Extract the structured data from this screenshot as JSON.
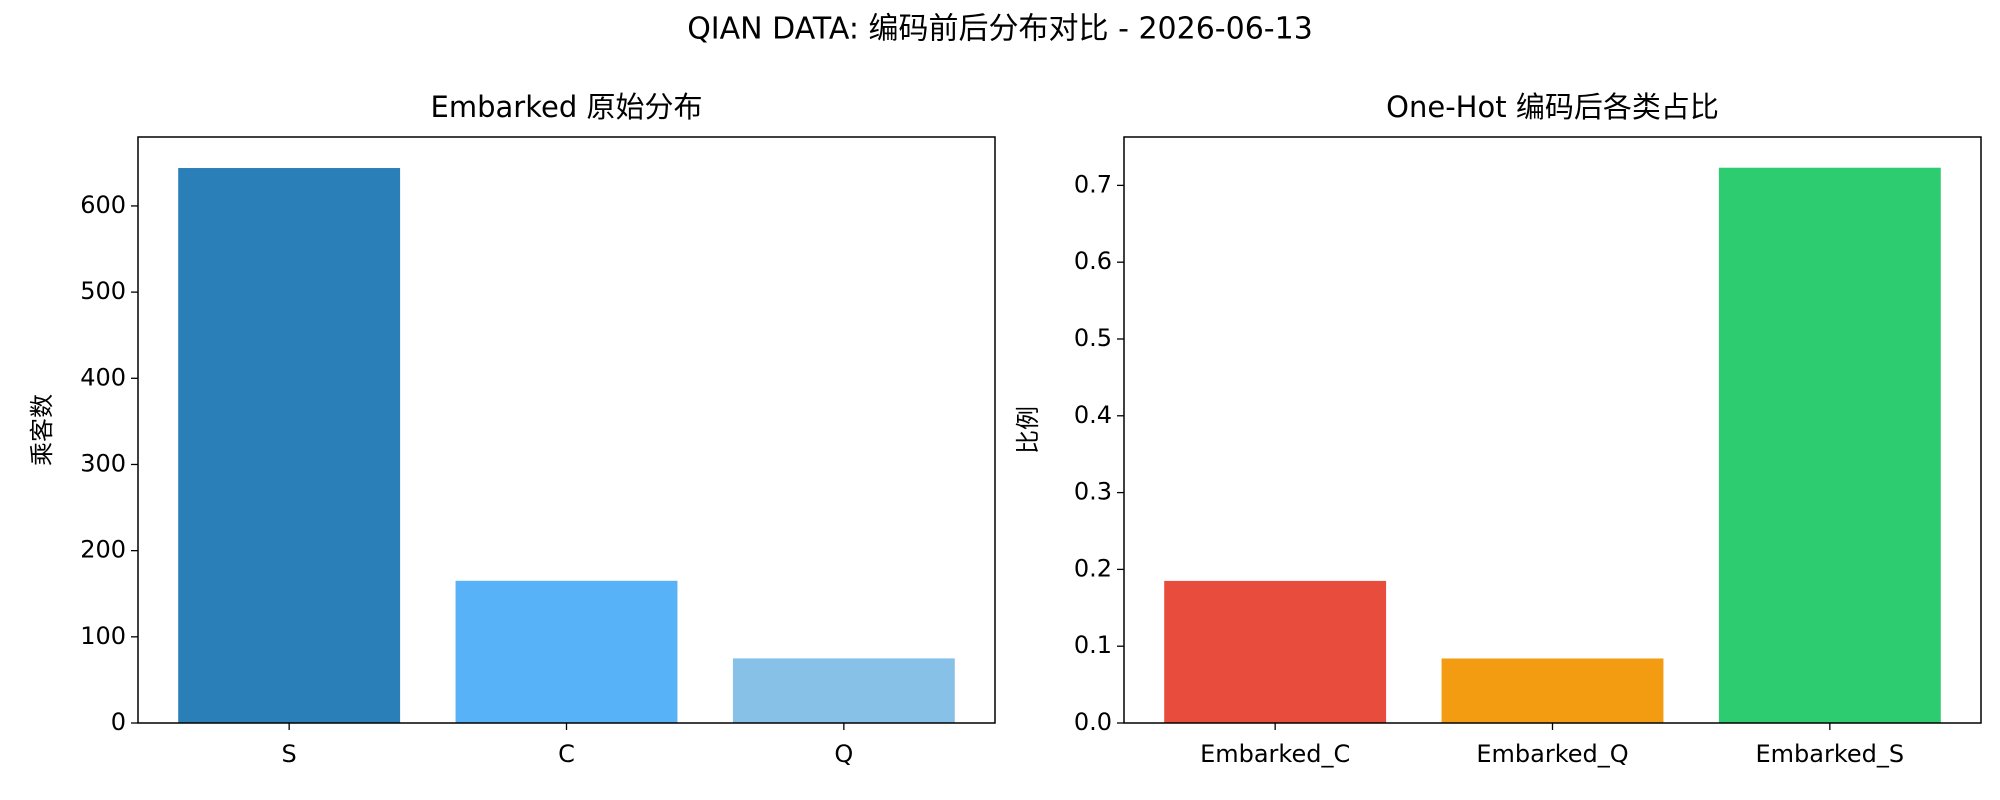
{
  "title": "QIAN DATA: 编码前后分布对比 - 2026-06-13",
  "chart_data": [
    {
      "type": "bar",
      "title": "Embarked 原始分布",
      "ylabel": "乘客数",
      "categories": [
        "S",
        "C",
        "Q"
      ],
      "values": [
        644,
        165,
        75
      ],
      "colors": [
        "#2a7fb8",
        "#57b2f7",
        "#88c1e8"
      ],
      "ylim": [
        0,
        680
      ],
      "yticks": [
        0,
        100,
        200,
        300,
        400,
        500,
        600
      ]
    },
    {
      "type": "bar",
      "title": "One-Hot 编码后各类占比",
      "ylabel": "比例",
      "categories": [
        "Embarked_C",
        "Embarked_Q",
        "Embarked_S"
      ],
      "values": [
        0.185,
        0.084,
        0.723
      ],
      "colors": [
        "#e74c3c",
        "#f39c12",
        "#2ecc71"
      ],
      "ylim": [
        0,
        0.763
      ],
      "yticks": [
        {
          "value": 0,
          "label": "0.0"
        },
        0.1,
        0.2,
        0.3,
        0.4,
        0.5,
        0.6,
        0.7
      ]
    }
  ]
}
